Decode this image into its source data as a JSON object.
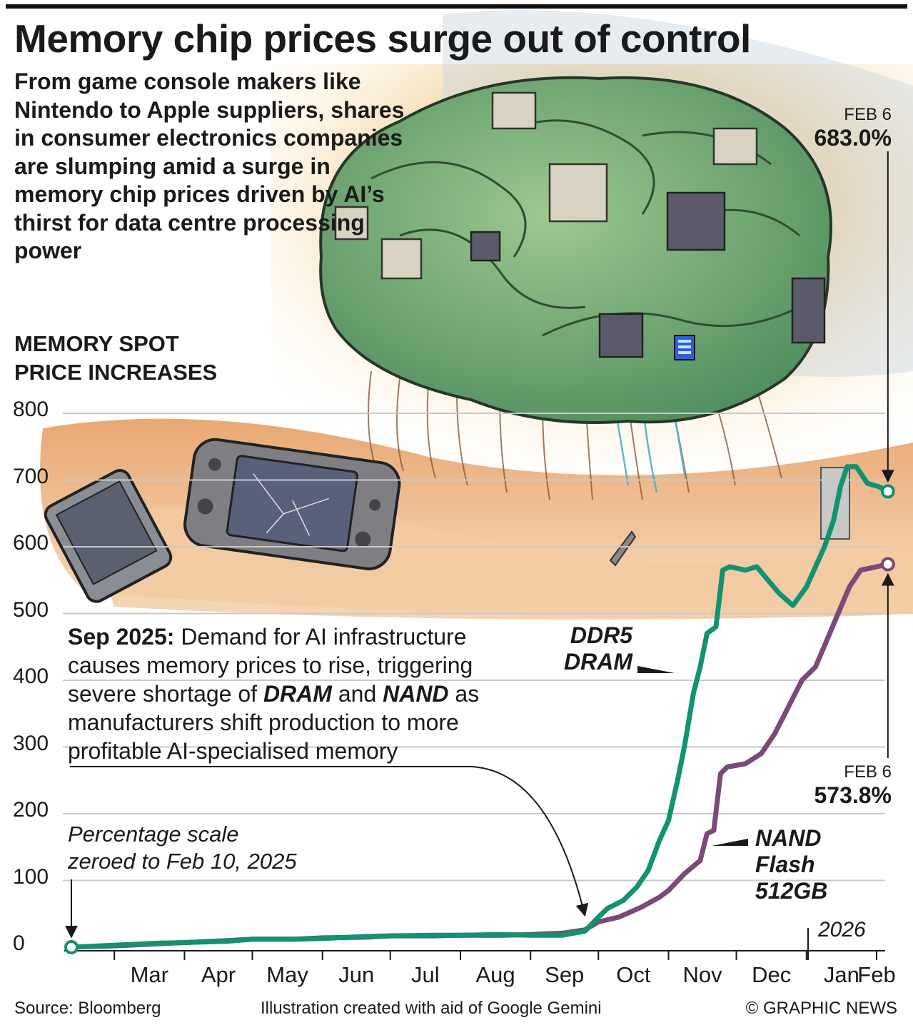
{
  "headline": "Memory chip prices surge out of control",
  "intro": "From game console makers like Nintendo to Apple suppliers, shares in consumer electronics companies are slumping amid a surge in memory chip prices driven by AI’s thirst for data centre processing power",
  "section_title": [
    "MEMORY SPOT",
    "PRICE INCREASES"
  ],
  "annotation": {
    "lead": "Sep 2025:",
    "text1": " Demand for AI infrastructure causes memory prices to rise, triggering severe shortage of ",
    "dram": "DRAM",
    "and": " and ",
    "nand": "NAND",
    "text2": " as manufacturers shift production to more profitable AI-specialised memory"
  },
  "scale_note": [
    "Percentage scale",
    "zeroed to Feb 10, 2025"
  ],
  "year_label": "2026",
  "end_labels": {
    "ddr5": {
      "date": "FEB 6",
      "value": "683.0%"
    },
    "nand": {
      "date": "FEB 6",
      "value": "573.8%"
    }
  },
  "series_labels": {
    "ddr5": [
      "DDR5",
      "DRAM"
    ],
    "nand": [
      "NAND",
      "Flash",
      "512GB"
    ]
  },
  "footer": {
    "source": "Source: Bloomberg",
    "credit": "Illustration created with aid of Google Gemini",
    "copyright": "© GRAPHIC NEWS"
  },
  "colors": {
    "ddr5": "#12926f",
    "nand": "#7b4a76",
    "grid": "#c9c9c9",
    "axis": "#1a1a1a"
  },
  "illustration": {
    "subject": "circuit-board brain over desert with broken game consoles",
    "icon": "brain-chip-illustration"
  },
  "chart_data": {
    "type": "line",
    "title": "MEMORY SPOT PRICE INCREASES",
    "ylabel": "",
    "xlabel": "",
    "ylim": [
      0,
      800
    ],
    "yticks": [
      0,
      100,
      200,
      300,
      400,
      500,
      600,
      700,
      800
    ],
    "xlim": [
      "2025-02-10",
      "2026-02-09"
    ],
    "months": [
      {
        "label": "Mar",
        "date": "2025-03-01"
      },
      {
        "label": "Apr",
        "date": "2025-04-01"
      },
      {
        "label": "May",
        "date": "2025-05-01"
      },
      {
        "label": "Jun",
        "date": "2025-06-01"
      },
      {
        "label": "Jul",
        "date": "2025-07-01"
      },
      {
        "label": "Aug",
        "date": "2025-08-01"
      },
      {
        "label": "Sep",
        "date": "2025-09-01"
      },
      {
        "label": "Oct",
        "date": "2025-10-01"
      },
      {
        "label": "Nov",
        "date": "2025-11-01"
      },
      {
        "label": "Dec",
        "date": "2025-12-01"
      },
      {
        "label": "Jan",
        "date": "2026-01-01"
      },
      {
        "label": "Feb",
        "date": "2026-02-01"
      }
    ],
    "grid": true,
    "series": [
      {
        "name": "DDR5 DRAM",
        "color": "#12926f",
        "points": [
          [
            "2025-02-10",
            0
          ],
          [
            "2025-03-01",
            3
          ],
          [
            "2025-03-20",
            6
          ],
          [
            "2025-04-01",
            7
          ],
          [
            "2025-04-20",
            9
          ],
          [
            "2025-05-01",
            12
          ],
          [
            "2025-05-20",
            12
          ],
          [
            "2025-06-01",
            13
          ],
          [
            "2025-06-20",
            16
          ],
          [
            "2025-07-01",
            17
          ],
          [
            "2025-07-20",
            18
          ],
          [
            "2025-08-01",
            18
          ],
          [
            "2025-08-20",
            19
          ],
          [
            "2025-09-01",
            18
          ],
          [
            "2025-09-15",
            18
          ],
          [
            "2025-09-25",
            24
          ],
          [
            "2025-10-01",
            45
          ],
          [
            "2025-10-05",
            58
          ],
          [
            "2025-10-12",
            70
          ],
          [
            "2025-10-18",
            90
          ],
          [
            "2025-10-23",
            115
          ],
          [
            "2025-10-28",
            160
          ],
          [
            "2025-11-01",
            190
          ],
          [
            "2025-11-05",
            250
          ],
          [
            "2025-11-08",
            300
          ],
          [
            "2025-11-12",
            380
          ],
          [
            "2025-11-15",
            420
          ],
          [
            "2025-11-18",
            470
          ],
          [
            "2025-11-22",
            480
          ],
          [
            "2025-11-25",
            565
          ],
          [
            "2025-11-28",
            570
          ],
          [
            "2025-12-05",
            565
          ],
          [
            "2025-12-10",
            570
          ],
          [
            "2025-12-15",
            550
          ],
          [
            "2025-12-20",
            530
          ],
          [
            "2025-12-26",
            512
          ],
          [
            "2026-01-01",
            540
          ],
          [
            "2026-01-05",
            570
          ],
          [
            "2026-01-09",
            600
          ],
          [
            "2026-01-13",
            640
          ],
          [
            "2026-01-16",
            690
          ],
          [
            "2026-01-19",
            720
          ],
          [
            "2026-01-23",
            720
          ],
          [
            "2026-01-28",
            695
          ],
          [
            "2026-02-02",
            690
          ],
          [
            "2026-02-06",
            683
          ]
        ]
      },
      {
        "name": "NAND Flash 512GB",
        "color": "#7b4a76",
        "points": [
          [
            "2025-02-10",
            0
          ],
          [
            "2025-03-01",
            2
          ],
          [
            "2025-03-20",
            5
          ],
          [
            "2025-04-01",
            7
          ],
          [
            "2025-04-20",
            10
          ],
          [
            "2025-05-01",
            12
          ],
          [
            "2025-05-20",
            12
          ],
          [
            "2025-06-01",
            14
          ],
          [
            "2025-06-20",
            15
          ],
          [
            "2025-07-01",
            17
          ],
          [
            "2025-07-20",
            17
          ],
          [
            "2025-08-01",
            18
          ],
          [
            "2025-08-20",
            18
          ],
          [
            "2025-09-01",
            19
          ],
          [
            "2025-09-15",
            21
          ],
          [
            "2025-09-25",
            26
          ],
          [
            "2025-10-01",
            38
          ],
          [
            "2025-10-10",
            45
          ],
          [
            "2025-10-20",
            60
          ],
          [
            "2025-10-28",
            75
          ],
          [
            "2025-11-01",
            85
          ],
          [
            "2025-11-08",
            110
          ],
          [
            "2025-11-15",
            130
          ],
          [
            "2025-11-18",
            170
          ],
          [
            "2025-11-21",
            175
          ],
          [
            "2025-11-24",
            260
          ],
          [
            "2025-11-27",
            270
          ],
          [
            "2025-12-05",
            275
          ],
          [
            "2025-12-12",
            290
          ],
          [
            "2025-12-18",
            320
          ],
          [
            "2025-12-24",
            360
          ],
          [
            "2025-12-30",
            400
          ],
          [
            "2026-01-05",
            420
          ],
          [
            "2026-01-10",
            460
          ],
          [
            "2026-01-15",
            500
          ],
          [
            "2026-01-20",
            540
          ],
          [
            "2026-01-25",
            565
          ],
          [
            "2026-02-01",
            570
          ],
          [
            "2026-02-06",
            573.8
          ]
        ]
      }
    ]
  }
}
